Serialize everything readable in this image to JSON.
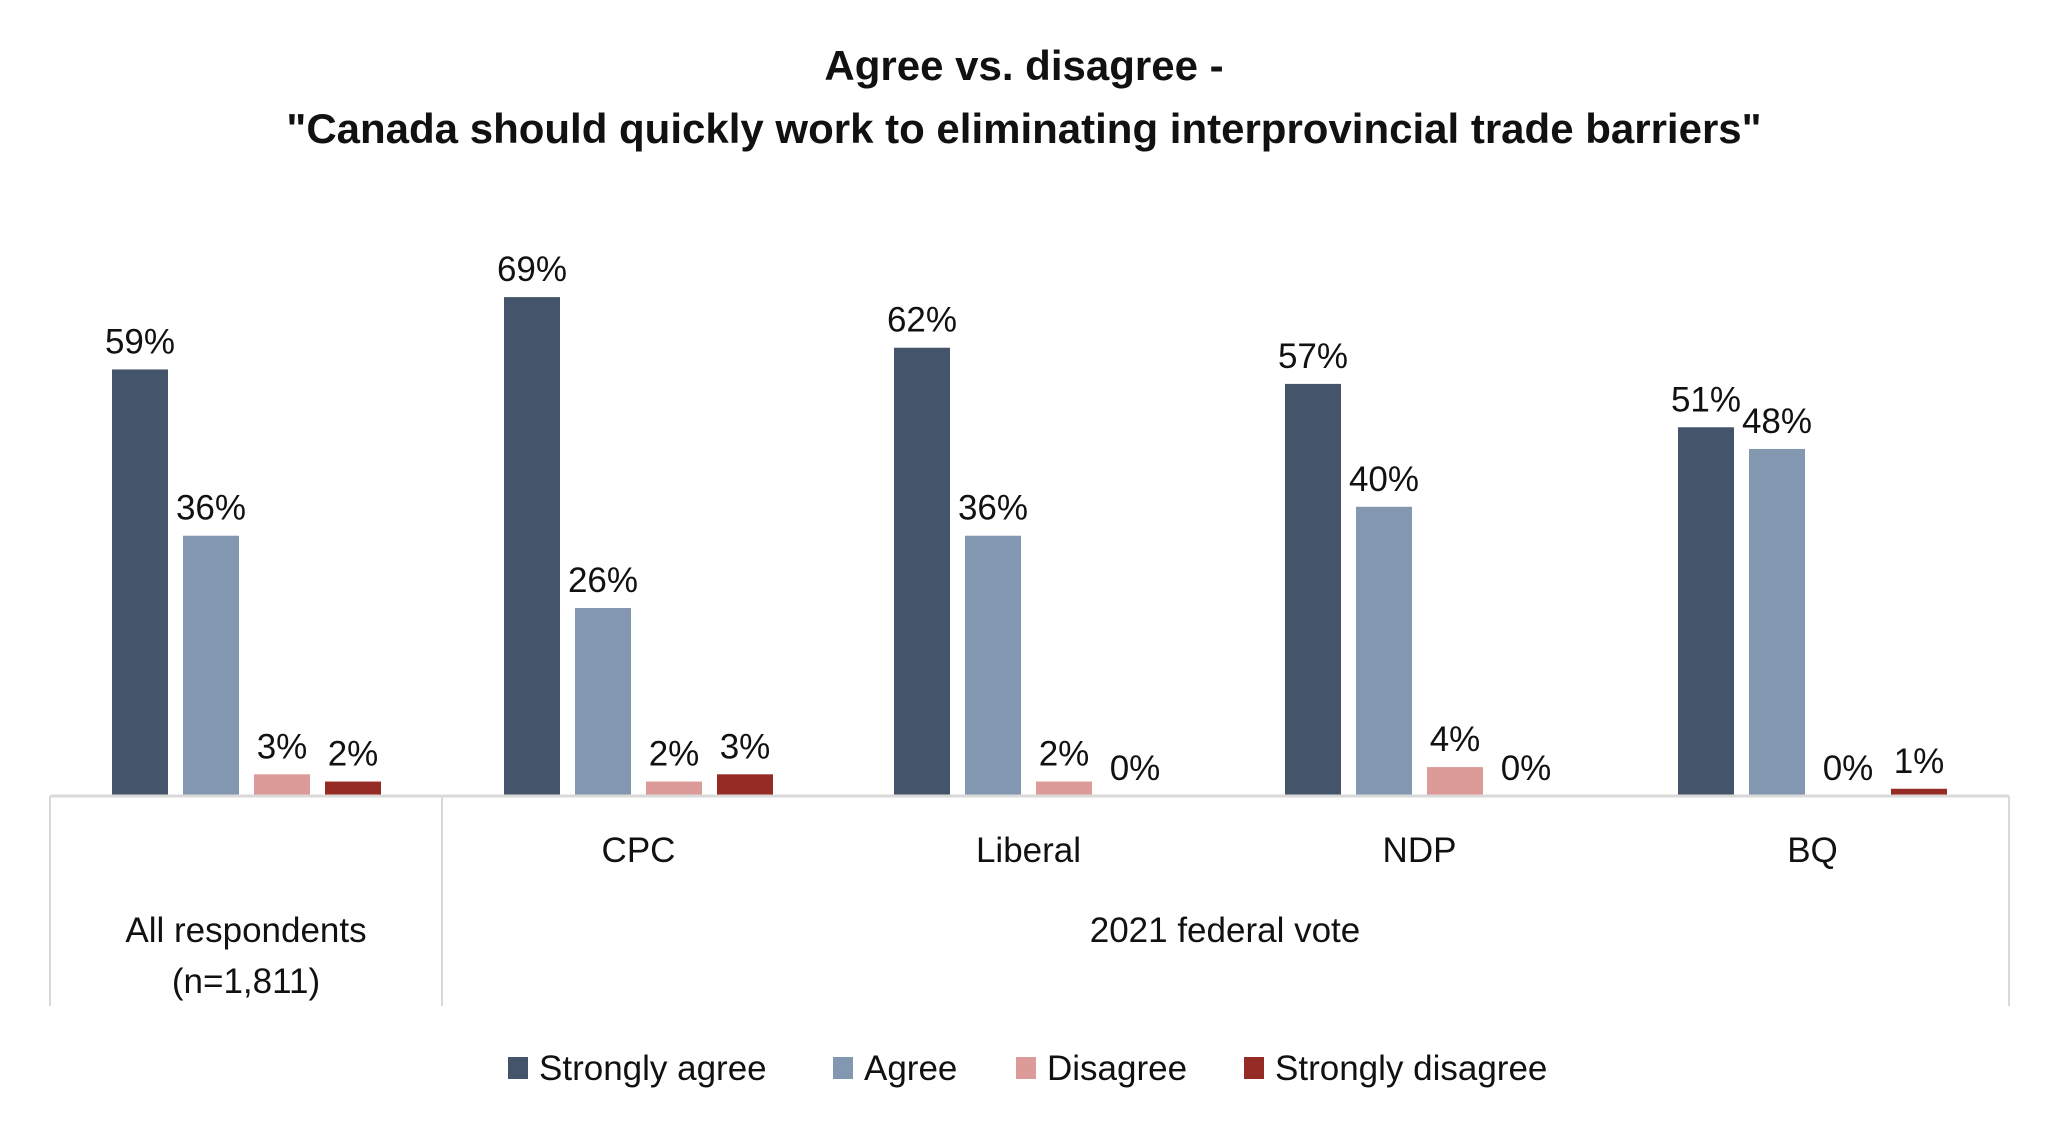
{
  "chart_data": {
    "type": "bar",
    "title": [
      "Agree vs. disagree -",
      "\"Canada should quickly work to eliminating interprovincial trade barriers\""
    ],
    "categories": [
      "All respondents (n=1,811)",
      "CPC",
      "Liberal",
      "NDP",
      "BQ"
    ],
    "category_labels": [
      [
        "All respondents",
        "(n=1,811)"
      ],
      [
        "CPC"
      ],
      [
        "Liberal"
      ],
      [
        "NDP"
      ],
      [
        "BQ"
      ]
    ],
    "group_label": "2021 federal vote",
    "series": [
      {
        "name": "Strongly agree",
        "color": "#44546a",
        "values": [
          59,
          69,
          62,
          57,
          51
        ]
      },
      {
        "name": "Agree",
        "color": "#8497b0",
        "values": [
          36,
          26,
          36,
          40,
          48
        ]
      },
      {
        "name": "Disagree",
        "color": "#dc9a98",
        "values": [
          3,
          2,
          2,
          4,
          0
        ]
      },
      {
        "name": "Strongly disagree",
        "color": "#962a24",
        "values": [
          2,
          3,
          0,
          0,
          1
        ]
      }
    ],
    "unit": "%",
    "ylim": [
      0,
      75
    ],
    "grid": false,
    "legend": "bottom"
  }
}
